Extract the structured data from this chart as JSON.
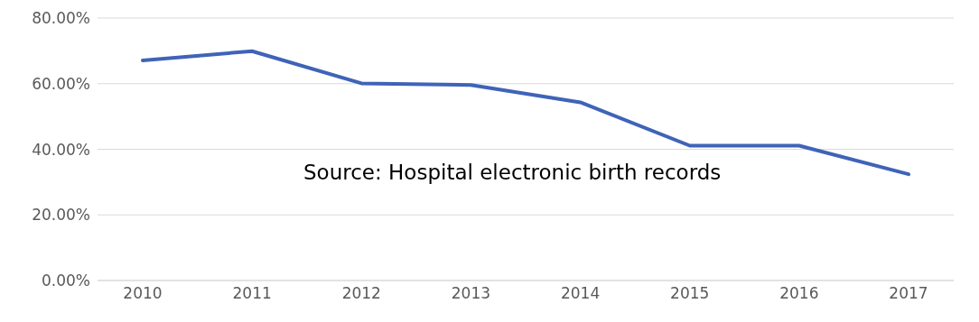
{
  "chart_data": {
    "type": "line",
    "categories": [
      "2010",
      "2011",
      "2012",
      "2013",
      "2014",
      "2015",
      "2016",
      "2017"
    ],
    "series": [
      {
        "color": "#3f63b8",
        "values": [
          67.1,
          69.9,
          60.1,
          59.6,
          54.3,
          41.1,
          41.1,
          32.4
        ]
      }
    ],
    "ylim": [
      0,
      80
    ],
    "yticks": [
      {
        "value": 0,
        "label": "0.00%"
      },
      {
        "value": 20,
        "label": "20.00%"
      },
      {
        "value": 40,
        "label": "40.00%"
      },
      {
        "value": 60,
        "label": "60.00%"
      },
      {
        "value": 80,
        "label": "80.00%"
      }
    ],
    "grid": "y",
    "legend": false,
    "marker": "none",
    "line_style": "solid",
    "annotations": [
      "Source: Hospital electronic birth records"
    ]
  }
}
